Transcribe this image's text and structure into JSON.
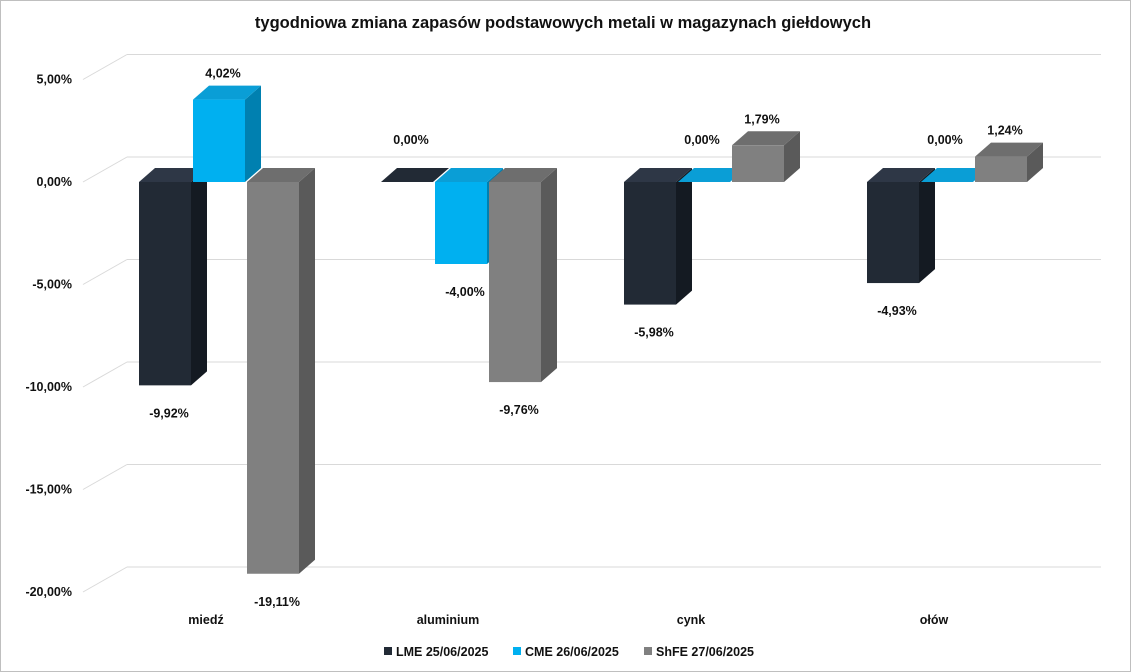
{
  "chart_data": {
    "type": "bar",
    "title": "tygodniowa zmiana zapasów podstawowych metali w magazynach giełdowych",
    "categories": [
      "miedź",
      "aluminium",
      "cynk",
      "ołów"
    ],
    "series": [
      {
        "name": "LME 25/06/2025",
        "values": [
          -9.92,
          0.0,
          -5.98,
          -4.93
        ],
        "labels": [
          "-9,92%",
          "0,00%",
          "-5,98%",
          "-4,93%"
        ],
        "color": "#222a35"
      },
      {
        "name": "CME 26/06/2025",
        "values": [
          4.02,
          -4.0,
          0.0,
          0.0
        ],
        "labels": [
          "4,02%",
          "-4,00%",
          "0,00%",
          "0,00%"
        ],
        "color": "#00b0f0"
      },
      {
        "name": "ShFE 27/06/2025",
        "values": [
          -19.11,
          -9.76,
          1.79,
          1.24
        ],
        "labels": [
          "-19,11%",
          "-9,76%",
          "1,79%",
          "1,24%"
        ],
        "color": "#808080"
      }
    ],
    "yticks": [
      5,
      0,
      -5,
      -10,
      -15,
      -20
    ],
    "ytick_labels": [
      "5,00%",
      "0,00%",
      "-5,00%",
      "-10,00%",
      "-15,00%",
      "-20,00%"
    ],
    "ylim": [
      -20,
      5
    ],
    "grid": true,
    "legend_position": "bottom",
    "style": "3d-clustered-column"
  }
}
